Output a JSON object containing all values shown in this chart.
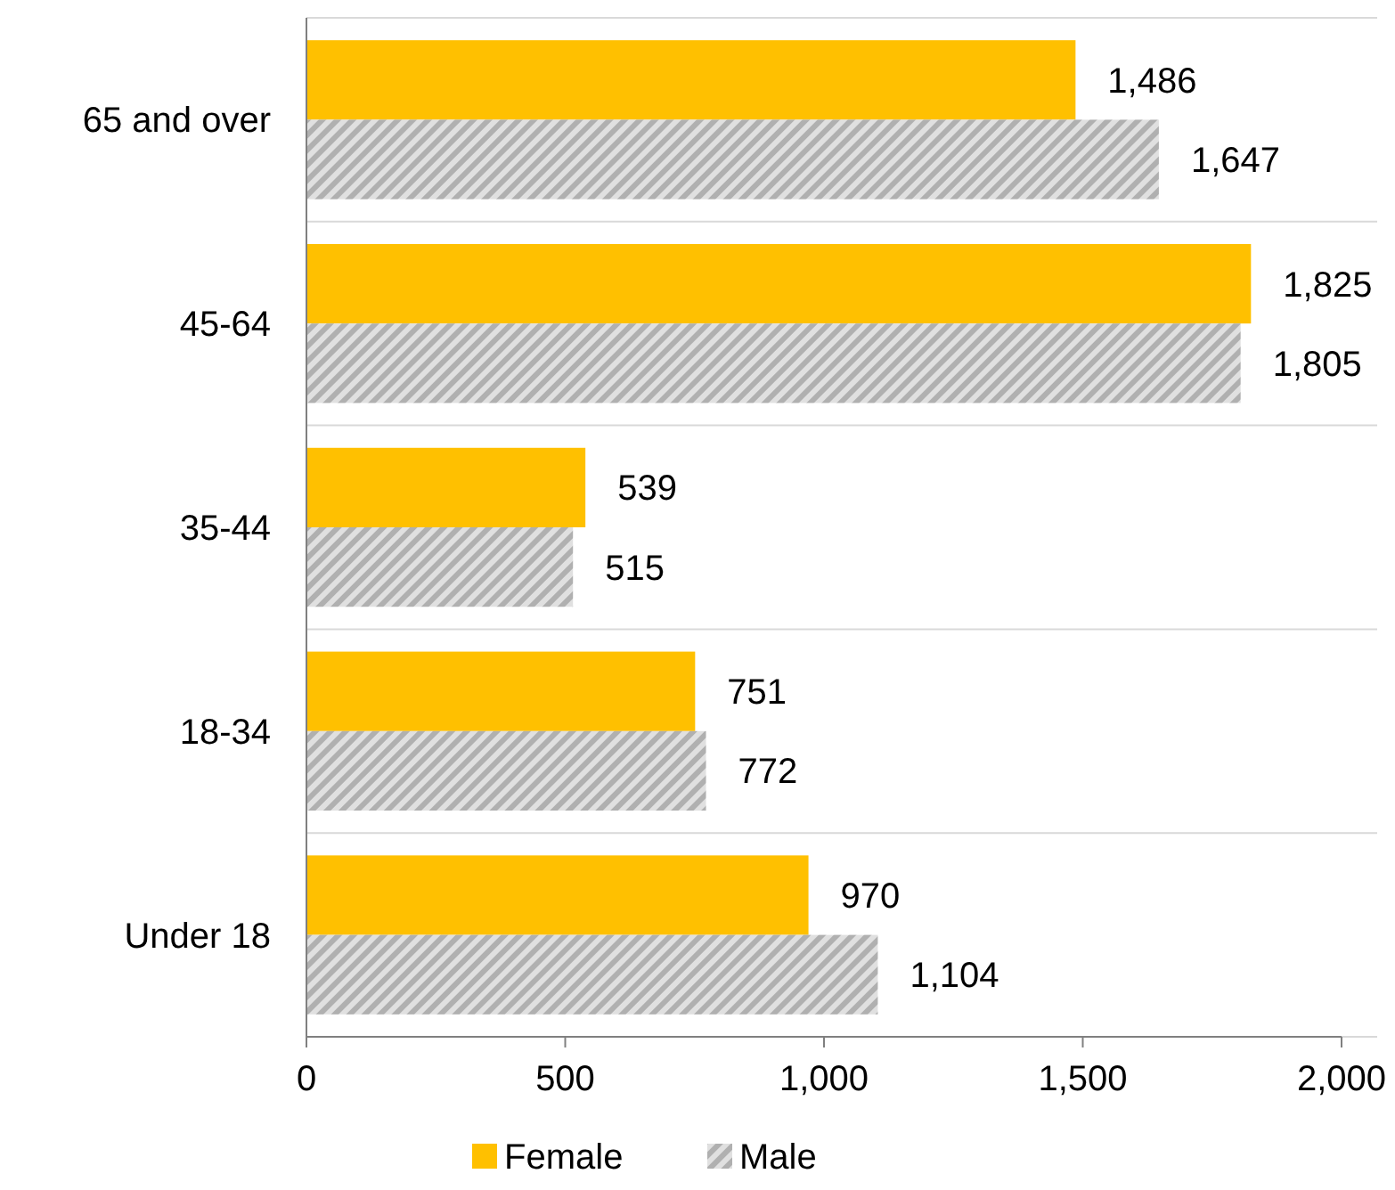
{
  "chart_data": {
    "type": "bar",
    "orientation": "horizontal",
    "categories": [
      "65 and over",
      "45-64",
      "35-44",
      "18-34",
      "Under 18"
    ],
    "series": [
      {
        "name": "Female",
        "color": "#ffc000",
        "values": [
          1486,
          1825,
          539,
          751,
          970
        ],
        "value_labels": [
          "1,486",
          "1,825",
          "539",
          "751",
          "970"
        ]
      },
      {
        "name": "Male",
        "color": "#b0b0b0",
        "values": [
          1647,
          1805,
          515,
          772,
          1104
        ],
        "value_labels": [
          "1,647",
          "1,805",
          "515",
          "772",
          "1,104"
        ]
      }
    ],
    "xlim": [
      0,
      2000
    ],
    "xticks": [
      0,
      {
        "value": 500,
        "label": "500"
      },
      {
        "value": 1000,
        "label": "1,000"
      },
      {
        "value": 1500,
        "label": "1,500"
      },
      {
        "value": 2000,
        "label": "2,000"
      }
    ],
    "grid": "y",
    "legend": "bottom"
  }
}
